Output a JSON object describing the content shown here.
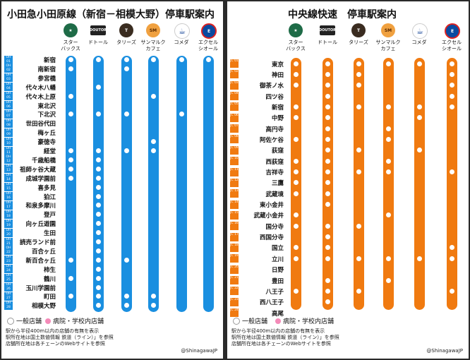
{
  "panels": [
    {
      "id": "left",
      "title": "小田急小田原線（新宿－相模大野）停車駅案内",
      "line_color": "#1a8fe0",
      "chains": [
        {
          "name": "スター\nバックス",
          "icon": "starbucks-logo"
        },
        {
          "name": "ドトール",
          "icon": "doutor-logo"
        },
        {
          "name": "タリーズ",
          "icon": "tullys-logo"
        },
        {
          "name": "サンマルク\nカフェ",
          "icon": "saint-marc-logo"
        },
        {
          "name": "コメダ",
          "icon": "komeda-logo"
        },
        {
          "name": "エクセル\nシオール",
          "icon": "excelsior-logo"
        }
      ],
      "stations": [
        {
          "code": "OH 01",
          "name": "新宿",
          "shops": [
            1,
            1,
            1,
            1,
            1,
            1
          ]
        },
        {
          "code": "OH 02",
          "name": "南新宿",
          "shops": [
            1,
            0,
            1,
            0,
            0,
            0
          ]
        },
        {
          "code": "OH 03",
          "name": "参宮橋",
          "shops": [
            0,
            0,
            0,
            0,
            0,
            0
          ]
        },
        {
          "code": "OH 04",
          "name": "代々木八幡",
          "shops": [
            0,
            1,
            0,
            0,
            0,
            0
          ]
        },
        {
          "code": "OH 05",
          "name": "代々木上原",
          "shops": [
            1,
            0,
            0,
            1,
            0,
            0
          ]
        },
        {
          "code": "OH 06",
          "name": "東北沢",
          "shops": [
            0,
            0,
            0,
            0,
            0,
            0
          ]
        },
        {
          "code": "OH 07",
          "name": "下北沢",
          "shops": [
            1,
            1,
            1,
            0,
            1,
            0
          ]
        },
        {
          "code": "OH 08",
          "name": "世田谷代田",
          "shops": [
            0,
            0,
            0,
            0,
            0,
            0
          ]
        },
        {
          "code": "OH 09",
          "name": "梅ヶ丘",
          "shops": [
            0,
            0,
            0,
            0,
            0,
            0
          ]
        },
        {
          "code": "OH 10",
          "name": "豪徳寺",
          "shops": [
            0,
            0,
            0,
            1,
            0,
            0
          ]
        },
        {
          "code": "OH 11",
          "name": "経堂",
          "shops": [
            1,
            1,
            1,
            1,
            0,
            0
          ]
        },
        {
          "code": "OH 12",
          "name": "千歳船橋",
          "shops": [
            1,
            1,
            0,
            0,
            0,
            0
          ]
        },
        {
          "code": "OH 13",
          "name": "祖師ヶ谷大蔵",
          "shops": [
            1,
            1,
            0,
            0,
            0,
            0
          ]
        },
        {
          "code": "OH 14",
          "name": "成城学園前",
          "shops": [
            1,
            1,
            0,
            0,
            0,
            0
          ]
        },
        {
          "code": "OH 15",
          "name": "喜多見",
          "shops": [
            0,
            1,
            0,
            0,
            0,
            0
          ]
        },
        {
          "code": "OH 16",
          "name": "狛江",
          "shops": [
            0,
            1,
            0,
            0,
            0,
            0
          ]
        },
        {
          "code": "OH 17",
          "name": "和泉多摩川",
          "shops": [
            0,
            1,
            0,
            0,
            0,
            0
          ]
        },
        {
          "code": "OH 18",
          "name": "登戸",
          "shops": [
            0,
            1,
            0,
            0,
            0,
            0
          ]
        },
        {
          "code": "OH 19",
          "name": "向ヶ丘遊園",
          "shops": [
            0,
            1,
            0,
            0,
            0,
            0
          ]
        },
        {
          "code": "OH 20",
          "name": "生田",
          "shops": [
            0,
            1,
            0,
            0,
            0,
            0
          ]
        },
        {
          "code": "OH 21",
          "name": "読売ランド前",
          "shops": [
            0,
            1,
            0,
            0,
            0,
            0
          ]
        },
        {
          "code": "OH 22",
          "name": "百合ヶ丘",
          "shops": [
            0,
            1,
            0,
            0,
            0,
            0
          ]
        },
        {
          "code": "OH 23",
          "name": "新百合ヶ丘",
          "shops": [
            1,
            1,
            1,
            0,
            0,
            0
          ]
        },
        {
          "code": "OH 24",
          "name": "柿生",
          "shops": [
            0,
            1,
            0,
            0,
            0,
            0
          ]
        },
        {
          "code": "OH 25",
          "name": "鶴川",
          "shops": [
            1,
            1,
            0,
            0,
            0,
            0
          ]
        },
        {
          "code": "OH 26",
          "name": "玉川学園前",
          "shops": [
            0,
            1,
            0,
            0,
            0,
            0
          ]
        },
        {
          "code": "OH 27",
          "name": "町田",
          "shops": [
            1,
            1,
            1,
            1,
            0,
            0
          ]
        },
        {
          "code": "OH 28",
          "name": "相模大野",
          "shops": [
            0,
            1,
            1,
            1,
            0,
            0
          ]
        }
      ]
    },
    {
      "id": "right",
      "title": "中央線快速　停車駅案内",
      "line_color": "#f07a10",
      "chains": [
        {
          "name": "スター\nバックス",
          "icon": "starbucks-logo"
        },
        {
          "name": "ドトール",
          "icon": "doutor-logo"
        },
        {
          "name": "タリーズ",
          "icon": "tullys-logo"
        },
        {
          "name": "サンマルク\nカフェ",
          "icon": "saint-marc-logo"
        },
        {
          "name": "コメダ",
          "icon": "komeda-logo"
        },
        {
          "name": "エクセル\nシオール",
          "icon": "excelsior-logo"
        }
      ],
      "stations": [
        {
          "code": "JC 01",
          "name": "東京",
          "shops": [
            1,
            1,
            1,
            1,
            1,
            1
          ]
        },
        {
          "code": "JC 02",
          "name": "神田",
          "shops": [
            1,
            1,
            1,
            0,
            0,
            1
          ]
        },
        {
          "code": "JC 03",
          "name": "御茶ノ水",
          "shops": [
            1,
            1,
            1,
            0,
            0,
            1
          ]
        },
        {
          "code": "JC 04",
          "name": "四ツ谷",
          "shops": [
            0,
            1,
            0,
            0,
            0,
            1
          ]
        },
        {
          "code": "JC 05",
          "name": "新宿",
          "shops": [
            1,
            1,
            1,
            1,
            1,
            1
          ]
        },
        {
          "code": "JC 06",
          "name": "中野",
          "shops": [
            1,
            1,
            0,
            0,
            1,
            0
          ]
        },
        {
          "code": "JC 07",
          "name": "高円寺",
          "shops": [
            0,
            1,
            0,
            1,
            0,
            0
          ]
        },
        {
          "code": "JC 08",
          "name": "阿佐ケ谷",
          "shops": [
            1,
            1,
            0,
            1,
            0,
            0
          ]
        },
        {
          "code": "JC 09",
          "name": "荻窪",
          "shops": [
            0,
            1,
            1,
            0,
            1,
            0
          ]
        },
        {
          "code": "JC 10",
          "name": "西荻窪",
          "shops": [
            1,
            1,
            0,
            1,
            0,
            0
          ]
        },
        {
          "code": "JC 11",
          "name": "吉祥寺",
          "shops": [
            1,
            1,
            1,
            1,
            0,
            1
          ]
        },
        {
          "code": "JC 12",
          "name": "三鷹",
          "shops": [
            1,
            1,
            0,
            0,
            0,
            0
          ]
        },
        {
          "code": "JC 13",
          "name": "武蔵境",
          "shops": [
            1,
            1,
            0,
            0,
            0,
            0
          ]
        },
        {
          "code": "JC 14",
          "name": "東小金井",
          "shops": [
            0,
            1,
            0,
            0,
            0,
            0
          ]
        },
        {
          "code": "JC 15",
          "name": "武蔵小金井",
          "shops": [
            1,
            0,
            0,
            1,
            0,
            0
          ]
        },
        {
          "code": "JC 16",
          "name": "国分寺",
          "shops": [
            1,
            1,
            1,
            0,
            0,
            0
          ]
        },
        {
          "code": "JC 17",
          "name": "西国分寺",
          "shops": [
            0,
            1,
            0,
            0,
            0,
            0
          ]
        },
        {
          "code": "JC 18",
          "name": "国立",
          "shops": [
            1,
            1,
            0,
            0,
            0,
            1
          ]
        },
        {
          "code": "JC 19",
          "name": "立川",
          "shops": [
            1,
            1,
            1,
            1,
            1,
            1
          ]
        },
        {
          "code": "JC 20",
          "name": "日野",
          "shops": [
            0,
            0,
            0,
            0,
            0,
            0
          ]
        },
        {
          "code": "JC 21",
          "name": "豊田",
          "shops": [
            0,
            1,
            0,
            1,
            0,
            0
          ]
        },
        {
          "code": "JC 22",
          "name": "八王子",
          "shops": [
            1,
            1,
            1,
            0,
            0,
            1
          ]
        },
        {
          "code": "JC 23",
          "name": "西八王子",
          "shops": [
            0,
            1,
            0,
            0,
            0,
            0
          ]
        },
        {
          "code": "JC 24",
          "name": "高尾",
          "shops": [
            0,
            1,
            0,
            0,
            0,
            0
          ]
        }
      ]
    }
  ],
  "legend": {
    "general": "一般店舗",
    "hospital": "病院・学校内店舗",
    "hospital_color": "#f48ab8"
  },
  "notes": [
    "駅から半径400m以内の店舗の有無を表示",
    "駅所在地は国土数値情報 鉄道（ライン）」を参照",
    "店舗所在地は各チェーンのWebサイトを参照"
  ],
  "credit": "@ShinagawaJP"
}
